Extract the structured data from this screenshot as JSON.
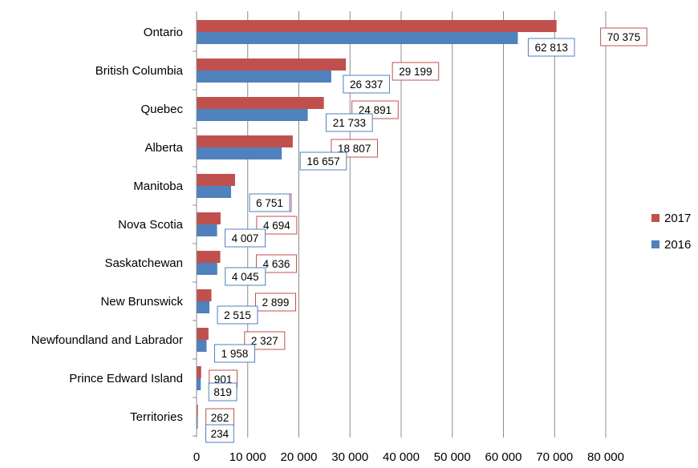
{
  "chart_data": {
    "type": "bar",
    "orientation": "horizontal",
    "title": "",
    "xlabel": "",
    "ylabel": "",
    "categories": [
      "Ontario",
      "British Columbia",
      "Quebec",
      "Alberta",
      "Manitoba",
      "Nova Scotia",
      "Saskatchewan",
      "New Brunswick",
      "Newfoundland and Labrador",
      "Prince Edward Island",
      "Territories"
    ],
    "series": [
      {
        "name": "2017",
        "color": "#C0504D",
        "values": [
          70375,
          29199,
          24891,
          18807,
          7523,
          4694,
          4636,
          2899,
          2327,
          901,
          262
        ],
        "labels": [
          "70 375",
          "29 199",
          "24 891",
          "18 807",
          "7 523",
          "4 694",
          "4 636",
          "2 899",
          "2 327",
          "901",
          "262"
        ]
      },
      {
        "name": "2016",
        "color": "#4F81BD",
        "values": [
          62813,
          26337,
          21733,
          16657,
          6751,
          4007,
          4045,
          2515,
          1958,
          819,
          234
        ],
        "labels": [
          "62 813",
          "26 337",
          "21 733",
          "16 657",
          "6 751",
          "4 007",
          "4 045",
          "2 515",
          "1 958",
          "819",
          "234"
        ]
      }
    ],
    "xlim": [
      0,
      80000
    ],
    "xticks": [
      0,
      10000,
      20000,
      30000,
      40000,
      50000,
      60000,
      70000,
      80000
    ],
    "xtick_labels": [
      "0",
      "10 000",
      "20 000",
      "30 000",
      "40 000",
      "50 000",
      "60 000",
      "70 000",
      "80 000"
    ],
    "grid": "vertical",
    "legend": "right"
  }
}
